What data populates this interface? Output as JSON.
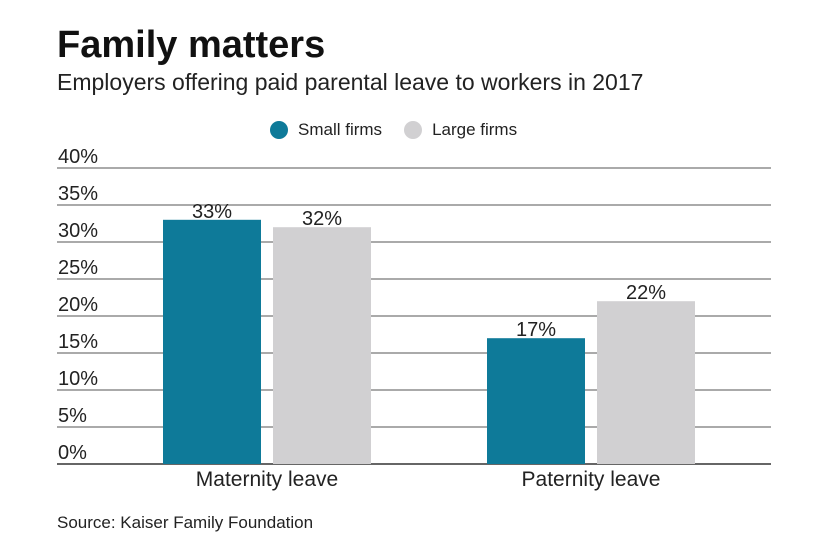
{
  "chart_data": {
    "type": "bar",
    "title": "Family matters",
    "subtitle": "Employers offering paid parental leave to workers in 2017",
    "categories": [
      "Maternity leave",
      "Paternity leave"
    ],
    "series": [
      {
        "name": "Small firms",
        "color": "#0e7a99",
        "values": [
          33,
          17
        ],
        "labels": [
          "33%",
          "17%"
        ]
      },
      {
        "name": "Large firms",
        "color": "#d1d0d2",
        "values": [
          32,
          22
        ],
        "labels": [
          "32%",
          "22%"
        ]
      }
    ],
    "ylim": [
      0,
      40
    ],
    "yticks": [
      "0%",
      "5%",
      "10%",
      "15%",
      "20%",
      "25%",
      "30%",
      "35%",
      "40%"
    ],
    "grid": true,
    "legend_position": "top-center",
    "source": "Source: Kaiser Family Foundation"
  }
}
